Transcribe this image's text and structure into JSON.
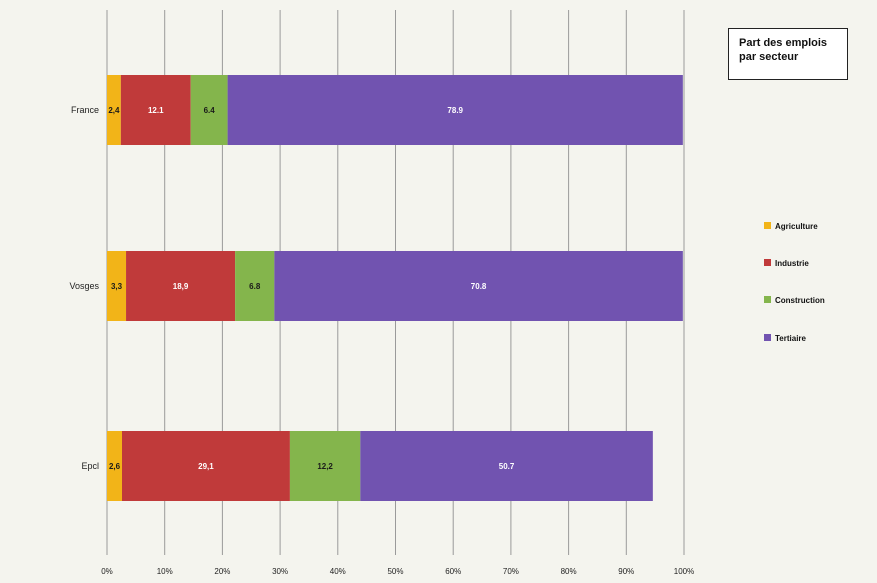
{
  "chart_data": {
    "type": "bar",
    "orientation": "horizontal",
    "stacked": true,
    "title": [
      "Part des emplois",
      "par secteur"
    ],
    "categories": [
      "France",
      "Vosges",
      "Epcl"
    ],
    "series": [
      {
        "name": "Agriculture",
        "color": "#f2b418",
        "values": [
          2.4,
          3.3,
          2.6
        ],
        "labels": [
          "2,4",
          "3,3",
          "2,6"
        ]
      },
      {
        "name": "Industrie",
        "color": "#c03a3a",
        "values": [
          12.1,
          18.9,
          29.1
        ],
        "labels": [
          "12.1",
          "18,9",
          "29,1"
        ]
      },
      {
        "name": "Construction",
        "color": "#84b54c",
        "values": [
          6.4,
          6.8,
          12.2
        ],
        "labels": [
          "6.4",
          "6.8",
          "12,2"
        ]
      },
      {
        "name": "Tertiaire",
        "color": "#7153b0",
        "values": [
          78.9,
          70.8,
          50.7
        ],
        "labels": [
          "78.9",
          "70.8",
          "50.7"
        ]
      }
    ],
    "x_ticks": [
      "0%",
      "10%",
      "20%",
      "30%",
      "40%",
      "50%",
      "60%",
      "70%",
      "80%",
      "90%",
      "100%"
    ],
    "xlim": [
      0,
      100
    ],
    "grid": true,
    "legend_position": "right"
  }
}
